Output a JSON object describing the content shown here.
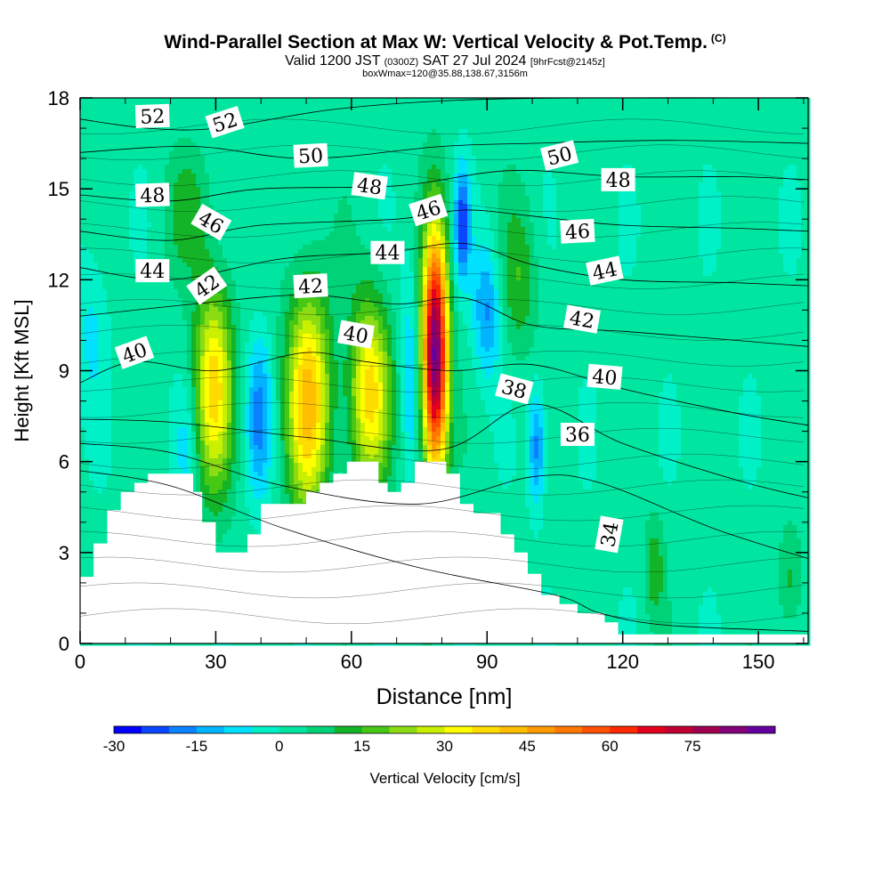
{
  "title": {
    "main": "Wind-Parallel Section at Max W: Vertical Velocity & Pot.Temp.",
    "copyright": "(C)",
    "valid_prefix": "Valid 1200 JST",
    "valid_utc": "(0300Z)",
    "valid_date": "SAT 27 Jul 2024",
    "forecast": "[9hrFcst@2145z]",
    "box_info": "boxWmax=120@35.88,138.67,3156m"
  },
  "chart_data": {
    "type": "contour",
    "xlabel": "Distance [nm]",
    "ylabel": "Height [Kft MSL]",
    "xlim": [
      0,
      161
    ],
    "ylim": [
      0,
      18
    ],
    "x_ticks": [
      "0",
      "30",
      "60",
      "90",
      "120",
      "150"
    ],
    "y_ticks": [
      "0",
      "3",
      "6",
      "9",
      "12",
      "15",
      "18"
    ],
    "colorbar": {
      "label": "Vertical Velocity [cm/s]",
      "tick_labels": [
        "-30",
        "-15",
        "0",
        "15",
        "30",
        "45",
        "60",
        "75"
      ],
      "levels": [
        -30,
        -25,
        -20,
        -15,
        -10,
        -5,
        0,
        5,
        10,
        15,
        20,
        25,
        30,
        35,
        40,
        45,
        50,
        55,
        60,
        65,
        70,
        75,
        80,
        85,
        90
      ],
      "colors": [
        "#0000ff",
        "#0a46ff",
        "#0a82ff",
        "#00b4ff",
        "#00e0ff",
        "#00f0c8",
        "#00e6a0",
        "#00d278",
        "#14b428",
        "#46c814",
        "#8cdc14",
        "#c8f000",
        "#ffff00",
        "#ffdc00",
        "#ffbe00",
        "#ff9b00",
        "#ff7800",
        "#ff5000",
        "#ff2800",
        "#e1001e",
        "#c00032",
        "#a00050",
        "#820078",
        "#6400a0"
      ]
    },
    "terrain_kft": [
      [
        0,
        2.2
      ],
      [
        3,
        2.2
      ],
      [
        3,
        3.3
      ],
      [
        6,
        3.3
      ],
      [
        6,
        4.4
      ],
      [
        9,
        4.4
      ],
      [
        9,
        5.0
      ],
      [
        12,
        5.0
      ],
      [
        12,
        5.3
      ],
      [
        15,
        5.3
      ],
      [
        15,
        5.6
      ],
      [
        25,
        5.6
      ],
      [
        25,
        5.0
      ],
      [
        27,
        5.0
      ],
      [
        27,
        4.0
      ],
      [
        30,
        4.0
      ],
      [
        30,
        3.0
      ],
      [
        37,
        3.0
      ],
      [
        37,
        3.6
      ],
      [
        40,
        3.6
      ],
      [
        40,
        4.6
      ],
      [
        50,
        4.6
      ],
      [
        50,
        5.0
      ],
      [
        53,
        5.0
      ],
      [
        53,
        5.3
      ],
      [
        56,
        5.3
      ],
      [
        56,
        5.6
      ],
      [
        59,
        5.6
      ],
      [
        59,
        6.0
      ],
      [
        66,
        6.0
      ],
      [
        66,
        5.3
      ],
      [
        68,
        5.3
      ],
      [
        68,
        5.0
      ],
      [
        71,
        5.0
      ],
      [
        71,
        5.3
      ],
      [
        74,
        5.3
      ],
      [
        74,
        6.0
      ],
      [
        81,
        6.0
      ],
      [
        81,
        5.6
      ],
      [
        84,
        5.6
      ],
      [
        84,
        4.6
      ],
      [
        87,
        4.6
      ],
      [
        87,
        4.3
      ],
      [
        93,
        4.3
      ],
      [
        93,
        3.6
      ],
      [
        96,
        3.6
      ],
      [
        96,
        3.0
      ],
      [
        99,
        3.0
      ],
      [
        99,
        2.3
      ],
      [
        102,
        2.3
      ],
      [
        102,
        1.6
      ],
      [
        106,
        1.6
      ],
      [
        106,
        1.3
      ],
      [
        110,
        1.3
      ],
      [
        110,
        1.0
      ],
      [
        116,
        1.0
      ],
      [
        116,
        0.7
      ],
      [
        119,
        0.7
      ],
      [
        119,
        0
      ]
    ],
    "isentropes": [
      {
        "theta": 34,
        "points": [
          [
            0,
            5.7
          ],
          [
            20,
            5.2
          ],
          [
            45,
            3.8
          ],
          [
            75,
            2.5
          ],
          [
            105,
            1.6
          ],
          [
            115,
            1.0
          ],
          [
            130,
            0.6
          ],
          [
            161,
            0.4
          ]
        ]
      },
      {
        "theta": 36,
        "points": [
          [
            0,
            6.6
          ],
          [
            20,
            6.3
          ],
          [
            45,
            5.2
          ],
          [
            75,
            4.6
          ],
          [
            100,
            5.5
          ],
          [
            115,
            5.3
          ],
          [
            140,
            3.8
          ],
          [
            161,
            2.8
          ]
        ]
      },
      {
        "theta": 38,
        "points": [
          [
            0,
            7.4
          ],
          [
            20,
            7.3
          ],
          [
            50,
            6.8
          ],
          [
            80,
            6.4
          ],
          [
            100,
            7.9
          ],
          [
            120,
            6.6
          ],
          [
            145,
            5.4
          ],
          [
            161,
            4.8
          ]
        ]
      },
      {
        "theta": 40,
        "points": [
          [
            0,
            8.6
          ],
          [
            12,
            9.3
          ],
          [
            30,
            9.0
          ],
          [
            50,
            9.6
          ],
          [
            63,
            9.3
          ],
          [
            82,
            9.0
          ],
          [
            100,
            9.2
          ],
          [
            120,
            8.4
          ],
          [
            145,
            7.6
          ],
          [
            161,
            7.2
          ]
        ]
      },
      {
        "theta": 42,
        "points": [
          [
            0,
            10.8
          ],
          [
            25,
            11.2
          ],
          [
            50,
            11.5
          ],
          [
            70,
            11.2
          ],
          [
            85,
            11.4
          ],
          [
            100,
            10.5
          ],
          [
            120,
            10.3
          ],
          [
            145,
            10.0
          ],
          [
            161,
            9.8
          ]
        ]
      },
      {
        "theta": 44,
        "points": [
          [
            0,
            12.4
          ],
          [
            20,
            12.0
          ],
          [
            45,
            12.7
          ],
          [
            68,
            12.9
          ],
          [
            85,
            13.2
          ],
          [
            100,
            12.5
          ],
          [
            120,
            12.0
          ],
          [
            145,
            11.9
          ],
          [
            161,
            11.8
          ]
        ]
      },
      {
        "theta": 46,
        "points": [
          [
            0,
            13.6
          ],
          [
            20,
            13.3
          ],
          [
            40,
            13.8
          ],
          [
            70,
            14.0
          ],
          [
            85,
            14.3
          ],
          [
            100,
            14.1
          ],
          [
            120,
            13.8
          ],
          [
            145,
            13.7
          ],
          [
            161,
            13.6
          ]
        ]
      },
      {
        "theta": 48,
        "points": [
          [
            0,
            14.8
          ],
          [
            20,
            14.6
          ],
          [
            40,
            15.0
          ],
          [
            70,
            15.1
          ],
          [
            95,
            15.6
          ],
          [
            120,
            15.4
          ],
          [
            145,
            15.4
          ],
          [
            161,
            15.3
          ]
        ]
      },
      {
        "theta": 50,
        "points": [
          [
            0,
            16.2
          ],
          [
            25,
            16.4
          ],
          [
            50,
            16.0
          ],
          [
            80,
            16.4
          ],
          [
            100,
            16.5
          ],
          [
            130,
            16.6
          ],
          [
            161,
            16.5
          ]
        ]
      },
      {
        "theta": 52,
        "points": [
          [
            0,
            17.3
          ],
          [
            15,
            17.0
          ],
          [
            30,
            17.0
          ],
          [
            55,
            17.6
          ],
          [
            80,
            17.9
          ],
          [
            110,
            18.0
          ],
          [
            161,
            18.0
          ]
        ]
      }
    ],
    "contour_labels": [
      {
        "text": "52",
        "x": 16,
        "y": 17.4,
        "angle": -2
      },
      {
        "text": "52",
        "x": 32,
        "y": 17.2,
        "angle": -18
      },
      {
        "text": "50",
        "x": 51,
        "y": 16.1,
        "angle": -3
      },
      {
        "text": "50",
        "x": 106,
        "y": 16.1,
        "angle": -14
      },
      {
        "text": "48",
        "x": 16,
        "y": 14.8,
        "angle": -2
      },
      {
        "text": "48",
        "x": 64,
        "y": 15.1,
        "angle": 8
      },
      {
        "text": "48",
        "x": 119,
        "y": 15.3,
        "angle": 0
      },
      {
        "text": "46",
        "x": 29,
        "y": 13.9,
        "angle": 30
      },
      {
        "text": "46",
        "x": 77,
        "y": 14.3,
        "angle": -18
      },
      {
        "text": "46",
        "x": 110,
        "y": 13.6,
        "angle": -3
      },
      {
        "text": "44",
        "x": 16,
        "y": 12.3,
        "angle": 0
      },
      {
        "text": "44",
        "x": 68,
        "y": 12.9,
        "angle": 0
      },
      {
        "text": "44",
        "x": 116,
        "y": 12.3,
        "angle": -12
      },
      {
        "text": "42",
        "x": 28,
        "y": 11.8,
        "angle": -35
      },
      {
        "text": "42",
        "x": 51,
        "y": 11.8,
        "angle": -3
      },
      {
        "text": "42",
        "x": 111,
        "y": 10.7,
        "angle": 10
      },
      {
        "text": "40",
        "x": 12,
        "y": 9.6,
        "angle": -20
      },
      {
        "text": "40",
        "x": 61,
        "y": 10.2,
        "angle": 10
      },
      {
        "text": "40",
        "x": 116,
        "y": 8.8,
        "angle": 5
      },
      {
        "text": "38",
        "x": 96,
        "y": 8.4,
        "angle": 15
      },
      {
        "text": "36",
        "x": 110,
        "y": 6.9,
        "angle": 0
      },
      {
        "text": "34",
        "x": 117,
        "y": 3.6,
        "angle": -80
      }
    ],
    "updraft_cells": [
      {
        "x": 29.5,
        "y": 8.5,
        "peak": 35,
        "sx": 3.0,
        "sy": 2.4
      },
      {
        "x": 50.5,
        "y": 8.0,
        "peak": 40,
        "sx": 3.4,
        "sy": 2.6
      },
      {
        "x": 64,
        "y": 8.3,
        "peak": 35,
        "sx": 3.2,
        "sy": 2.2
      },
      {
        "x": 78.5,
        "y": 9.5,
        "peak": 85,
        "sx": 2.0,
        "sy": 2.8
      },
      {
        "x": 97,
        "y": 12.0,
        "peak": 12,
        "sx": 3.0,
        "sy": 1.8
      },
      {
        "x": 127,
        "y": 2.5,
        "peak": 12,
        "sx": 1.5,
        "sy": 1.2
      },
      {
        "x": 157,
        "y": 2.0,
        "peak": 10,
        "sx": 2.0,
        "sy": 1.2
      },
      {
        "x": 24,
        "y": 14.2,
        "peak": 10,
        "sx": 3.5,
        "sy": 1.4
      }
    ],
    "downdraft_cells": [
      {
        "x": 39.5,
        "y": 7.5,
        "peak": -18,
        "sx": 2.0,
        "sy": 1.8
      },
      {
        "x": 73,
        "y": 9.0,
        "peak": -12,
        "sx": 1.5,
        "sy": 2.5
      },
      {
        "x": 84.5,
        "y": 13.8,
        "peak": -25,
        "sx": 1.2,
        "sy": 1.3
      },
      {
        "x": 90,
        "y": 11.0,
        "peak": -18,
        "sx": 2.2,
        "sy": 1.6
      },
      {
        "x": 101,
        "y": 6.5,
        "peak": -20,
        "sx": 1.3,
        "sy": 1.4
      },
      {
        "x": 23.5,
        "y": 6.5,
        "peak": -8,
        "sx": 1.8,
        "sy": 1.5
      },
      {
        "x": 2.5,
        "y": 10.5,
        "peak": -8,
        "sx": 2.5,
        "sy": 2.0
      }
    ]
  }
}
